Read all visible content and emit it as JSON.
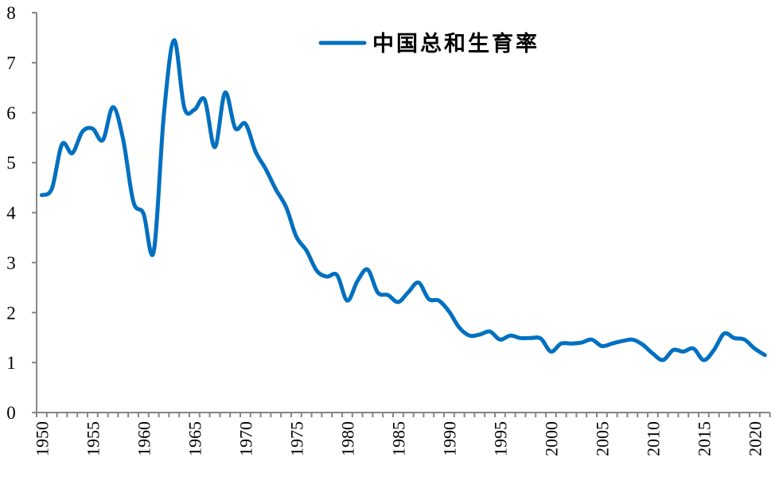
{
  "chart_data": {
    "type": "line",
    "title": "",
    "xlabel": "",
    "ylabel": "",
    "ylim": [
      0,
      8
    ],
    "yticks": [
      0,
      1,
      2,
      3,
      4,
      5,
      6,
      7,
      8
    ],
    "xtick_labels": [
      "1950",
      "1955",
      "1960",
      "1965",
      "1970",
      "1975",
      "1980",
      "1985",
      "1990",
      "1995",
      "2000",
      "2005",
      "2010",
      "2015",
      "2020"
    ],
    "grid": false,
    "legend_position": "top-center",
    "x": [
      1950,
      1951,
      1952,
      1953,
      1954,
      1955,
      1956,
      1957,
      1958,
      1959,
      1960,
      1961,
      1962,
      1963,
      1964,
      1965,
      1966,
      1967,
      1968,
      1969,
      1970,
      1971,
      1972,
      1973,
      1974,
      1975,
      1976,
      1977,
      1978,
      1979,
      1980,
      1981,
      1982,
      1983,
      1984,
      1985,
      1986,
      1987,
      1988,
      1989,
      1990,
      1991,
      1992,
      1993,
      1994,
      1995,
      1996,
      1997,
      1998,
      1999,
      2000,
      2001,
      2002,
      2003,
      2004,
      2005,
      2006,
      2007,
      2008,
      2009,
      2010,
      2011,
      2012,
      2013,
      2014,
      2015,
      2016,
      2017,
      2018,
      2019,
      2020,
      2021
    ],
    "series": [
      {
        "name": "中国总和生育率",
        "color": "#0070C0",
        "values": [
          4.35,
          4.48,
          5.37,
          5.19,
          5.62,
          5.68,
          5.45,
          6.11,
          5.46,
          4.22,
          3.98,
          3.22,
          5.97,
          7.45,
          6.1,
          6.06,
          6.26,
          5.31,
          6.4,
          5.69,
          5.78,
          5.22,
          4.87,
          4.46,
          4.11,
          3.52,
          3.24,
          2.84,
          2.72,
          2.75,
          2.24,
          2.63,
          2.86,
          2.4,
          2.35,
          2.21,
          2.41,
          2.6,
          2.27,
          2.24,
          2.02,
          1.7,
          1.54,
          1.56,
          1.62,
          1.46,
          1.54,
          1.49,
          1.49,
          1.48,
          1.22,
          1.38,
          1.38,
          1.4,
          1.46,
          1.33,
          1.38,
          1.43,
          1.46,
          1.36,
          1.18,
          1.05,
          1.25,
          1.22,
          1.28,
          1.05,
          1.25,
          1.58,
          1.49,
          1.46,
          1.28,
          1.15
        ]
      }
    ]
  },
  "legend": {
    "label": "中国总和生育率"
  },
  "colors": {
    "series": "#0070C0",
    "axis": "#868686"
  }
}
